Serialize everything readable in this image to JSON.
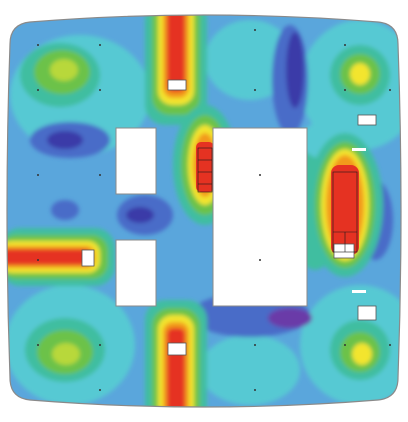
{
  "diagram": {
    "kind": "slab-contour-plot",
    "has_text": false,
    "palette": {
      "outline": "#8a8a8a",
      "opening_fill": "#ffffff",
      "deep_blue": "#3b3ba8",
      "blue": "#4a6cc8",
      "sky": "#5aa6dc",
      "cyan": "#57c9d3",
      "teal": "#3fbea0",
      "green": "#6cc24a",
      "lime": "#b8d83a",
      "yellow": "#f3e52d",
      "orange": "#f29a1f",
      "red": "#e53222",
      "purple": "#6a3aa8",
      "mesh_line": "#1a1a1a"
    },
    "openings": [
      {
        "name": "opening-upper-left",
        "shape": "rectangle"
      },
      {
        "name": "opening-lower-left",
        "shape": "rectangle"
      },
      {
        "name": "opening-center",
        "shape": "rectangle"
      }
    ]
  }
}
